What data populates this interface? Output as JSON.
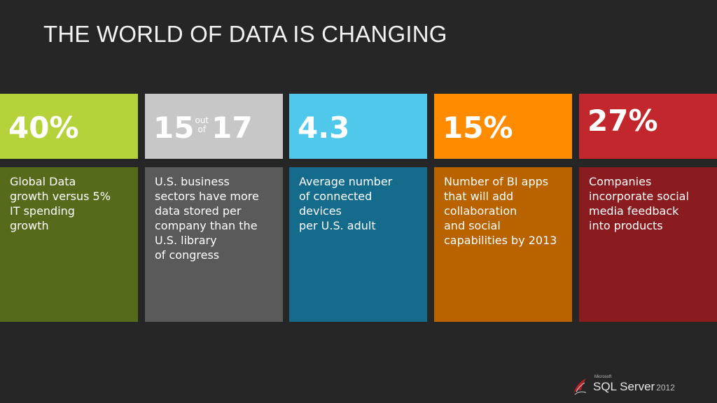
{
  "slide": {
    "title": "THE WORLD OF DATA IS CHANGING"
  },
  "tiles": [
    {
      "stat": "40%",
      "description": "Global Data\ngrowth versus 5%\nIT spending\ngrowth",
      "colors": {
        "top": "#b4d23a",
        "bottom": "#556b1b"
      }
    },
    {
      "stat_main": "15",
      "stat_fraction_top": "out",
      "stat_fraction_bottom": "of",
      "stat_suffix": "17",
      "description": "U.S. business\nsectors have more\ndata stored per\ncompany than the\nU.S. library\nof congress",
      "colors": {
        "top": "#c7c7c7",
        "bottom": "#5a5a5a"
      }
    },
    {
      "stat": "4.3",
      "description": "Average number\nof connected\ndevices\nper U.S. adult",
      "colors": {
        "top": "#4fc8ec",
        "bottom": "#146b8b"
      }
    },
    {
      "stat": "15%",
      "description": "Number of BI apps\nthat will add\ncollaboration\nand social\ncapabilities by 2013",
      "colors": {
        "top": "#ff8c00",
        "bottom": "#b86200"
      }
    },
    {
      "stat": "27%",
      "description": "Companies\nincorporate social\nmedia feedback\ninto products",
      "colors": {
        "top": "#c1272d",
        "bottom": "#8a1c1f"
      }
    }
  ],
  "logo": {
    "maker": "Microsoft",
    "product": "SQL Server",
    "year": "2012",
    "icon": "sql-server-logo-icon"
  }
}
